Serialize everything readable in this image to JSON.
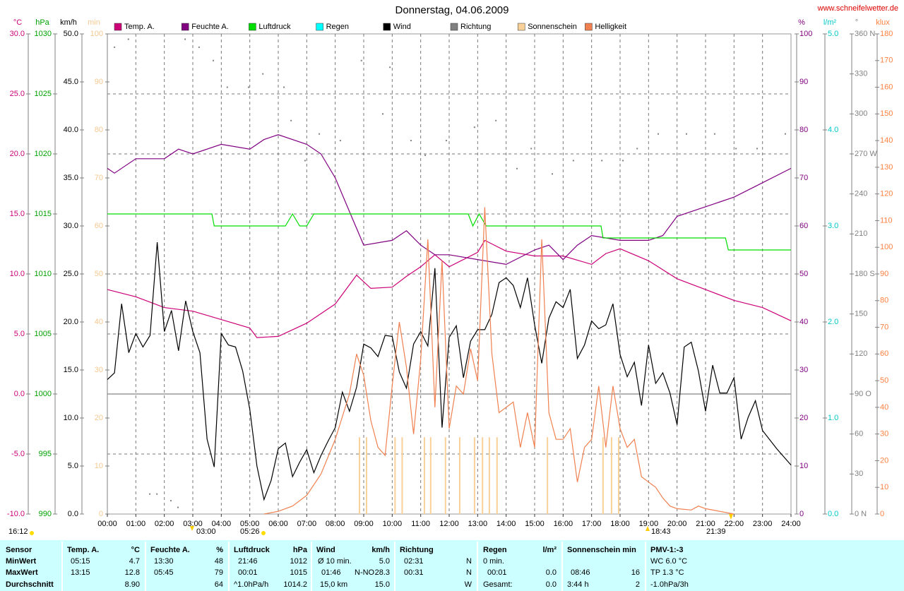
{
  "chart_data": {
    "type": "line",
    "title": "Donnerstag, 04.06.2009",
    "source": "www.schneifelwetter.de",
    "xlim": [
      0,
      24
    ],
    "xticks": [
      {
        "value": 0,
        "label": "00:00"
      },
      {
        "value": 1,
        "label": "01:00"
      },
      {
        "value": 2,
        "label": "02:00"
      },
      {
        "value": 3,
        "label": "03:00"
      },
      {
        "value": 4,
        "label": "04:00"
      },
      {
        "value": 5,
        "label": "05:00"
      },
      {
        "value": 6,
        "label": "06:00"
      },
      {
        "value": 7,
        "label": "07:00"
      },
      {
        "value": 8,
        "label": "08:00"
      },
      {
        "value": 9,
        "label": "09:00"
      },
      {
        "value": 10,
        "label": "10:00"
      },
      {
        "value": 11,
        "label": "11:00"
      },
      {
        "value": 12,
        "label": "12:00"
      },
      {
        "value": 13,
        "label": "13:00"
      },
      {
        "value": 14,
        "label": "14:00"
      },
      {
        "value": 15,
        "label": "15:00"
      },
      {
        "value": 16,
        "label": "16:00"
      },
      {
        "value": 17,
        "label": "17:00"
      },
      {
        "value": 18,
        "label": "18:00"
      },
      {
        "value": 19,
        "label": "19:00"
      },
      {
        "value": 20,
        "label": "20:00"
      },
      {
        "value": 21,
        "label": "21:00"
      },
      {
        "value": 22,
        "label": "22:00"
      },
      {
        "value": 23,
        "label": "23:00"
      },
      {
        "value": 24,
        "label": "24:00"
      }
    ],
    "grid": true,
    "annotations": [
      "16:12",
      "03:00",
      "05:26",
      "18:43",
      "21:39"
    ],
    "axes": [
      {
        "id": "temp",
        "label": "°C",
        "color": "#cc0077",
        "lim": [
          -10,
          30
        ],
        "ticks": [
          {
            "value": -10,
            "label": "-10.0"
          },
          {
            "value": -5,
            "label": "-5.0"
          },
          {
            "value": 0,
            "label": "0.0"
          },
          {
            "value": 5,
            "label": "5.0"
          },
          {
            "value": 10,
            "label": "10.0"
          },
          {
            "value": 15,
            "label": "15.0"
          },
          {
            "value": 20,
            "label": "20.0"
          },
          {
            "value": 25,
            "label": "25.0"
          },
          {
            "value": 30,
            "label": "30.0"
          }
        ]
      },
      {
        "id": "hpa",
        "label": "hPa",
        "color": "#00a000",
        "lim": [
          990,
          1030
        ],
        "ticks": [
          990,
          995,
          1000,
          1005,
          1010,
          1015,
          1020,
          1025,
          1030
        ]
      },
      {
        "id": "kmh",
        "label": "km/h",
        "color": "#000000",
        "lim": [
          0,
          50
        ],
        "ticks": [
          {
            "value": 0,
            "label": "0.0"
          },
          {
            "value": 5,
            "label": "5.0"
          },
          {
            "value": 10,
            "label": "10.0"
          },
          {
            "value": 15,
            "label": "15.0"
          },
          {
            "value": 20,
            "label": "20.0"
          },
          {
            "value": 25,
            "label": "25.0"
          },
          {
            "value": 30,
            "label": "30.0"
          },
          {
            "value": 35,
            "label": "35.0"
          },
          {
            "value": 40,
            "label": "40.0"
          },
          {
            "value": 45,
            "label": "45.0"
          },
          {
            "value": 50,
            "label": "50.0"
          }
        ]
      },
      {
        "id": "min",
        "label": "min",
        "color": "#f5c890",
        "lim": [
          0,
          100
        ],
        "ticks": [
          0,
          10,
          20,
          30,
          40,
          50,
          60,
          70,
          80,
          90,
          100
        ]
      },
      {
        "id": "pct",
        "label": "%",
        "color": "#800080",
        "lim": [
          0,
          100
        ],
        "ticks": [
          0,
          10,
          20,
          30,
          40,
          50,
          60,
          70,
          80,
          90,
          100
        ]
      },
      {
        "id": "rain",
        "label": "l/m²",
        "color": "#00c8c8",
        "lim": [
          0,
          5
        ],
        "ticks": [
          {
            "value": 0,
            "label": "0.0"
          },
          {
            "value": 1,
            "label": "1.0"
          },
          {
            "value": 2,
            "label": "2.0"
          },
          {
            "value": 3,
            "label": "3.0"
          },
          {
            "value": 4,
            "label": "4.0"
          },
          {
            "value": 5,
            "label": "5.0"
          }
        ]
      },
      {
        "id": "deg",
        "label": "°",
        "color": "#808080",
        "lim": [
          0,
          360
        ],
        "ticks": [
          {
            "value": 0,
            "label": "0 N"
          },
          30,
          60,
          {
            "value": 90,
            "label": "90 O"
          },
          120,
          150,
          {
            "value": 180,
            "label": "180 S"
          },
          210,
          240,
          {
            "value": 270,
            "label": "270 W"
          },
          300,
          330,
          {
            "value": 360,
            "label": "360 N"
          }
        ]
      },
      {
        "id": "klux",
        "label": "klux",
        "color": "#ff8040",
        "lim": [
          0,
          180
        ],
        "ticks": [
          0,
          10,
          20,
          30,
          40,
          50,
          60,
          70,
          80,
          90,
          100,
          110,
          120,
          130,
          140,
          150,
          160,
          170,
          180
        ]
      }
    ],
    "series": [
      {
        "name": "Temp. A.",
        "color": "#cc0077",
        "axis": "temp",
        "kind": "line",
        "x": [
          0,
          1,
          2,
          3,
          4,
          5,
          5.25,
          6,
          7,
          8,
          8.75,
          9.25,
          10,
          10.5,
          11,
          11.5,
          12,
          13,
          13.25,
          14,
          15,
          16,
          17,
          17.5,
          18,
          19,
          20,
          21,
          22,
          23,
          24
        ],
        "values": [
          8.7,
          8.1,
          7.2,
          6.9,
          6.2,
          5.5,
          4.7,
          4.8,
          5.9,
          7.5,
          9.9,
          8.8,
          8.9,
          9.8,
          10.6,
          11.6,
          10.6,
          11.8,
          12.8,
          11.9,
          11.5,
          11.5,
          10.8,
          11.7,
          12.1,
          11.1,
          9.6,
          8.7,
          7.8,
          7.2,
          6.1
        ]
      },
      {
        "name": "Feuchte A.",
        "color": "#800080",
        "axis": "pct",
        "kind": "line",
        "x": [
          0,
          0.25,
          1,
          2,
          2.5,
          3,
          4,
          5,
          5.5,
          6,
          7,
          7.5,
          8,
          8.5,
          9,
          10,
          10.5,
          11,
          11.5,
          12,
          13,
          14,
          15,
          15.5,
          16,
          16.5,
          17,
          18,
          19,
          19.5,
          20,
          21,
          22,
          23,
          24
        ],
        "values": [
          72,
          71,
          74,
          74,
          76,
          75,
          77,
          76,
          78,
          79,
          77,
          75,
          70,
          63,
          56,
          57,
          59,
          56,
          54,
          54,
          53,
          52,
          55,
          56,
          53,
          56,
          58,
          57,
          57,
          58,
          62,
          64,
          66,
          69,
          72
        ]
      },
      {
        "name": "Luftdruck",
        "color": "#00dd00",
        "axis": "hpa",
        "kind": "line",
        "x": [
          0,
          3.67,
          3.75,
          6.25,
          6.5,
          6.75,
          7,
          7.25,
          12.67,
          12.83,
          13.05,
          13.3,
          17.33,
          17.4,
          21.7,
          21.8,
          24
        ],
        "values": [
          1015,
          1015,
          1014,
          1014,
          1015,
          1014,
          1014,
          1015,
          1015,
          1014,
          1015,
          1014,
          1014,
          1013,
          1013,
          1012,
          1012
        ]
      },
      {
        "name": "Regen",
        "color": "#00ffff",
        "axis": "rain",
        "kind": "bar",
        "x": [],
        "values": []
      },
      {
        "name": "Wind",
        "color": "#000000",
        "axis": "kmh",
        "kind": "line",
        "x": [
          0,
          0.25,
          0.5,
          0.75,
          1,
          1.25,
          1.5,
          1.75,
          2,
          2.25,
          2.5,
          2.75,
          3,
          3.25,
          3.5,
          3.75,
          4,
          4.25,
          4.5,
          4.75,
          5,
          5.25,
          5.5,
          5.75,
          6,
          6.25,
          6.5,
          6.75,
          7,
          7.25,
          7.5,
          7.75,
          8,
          8.25,
          8.5,
          8.75,
          9,
          9.25,
          9.5,
          9.75,
          10,
          10.25,
          10.5,
          10.75,
          11,
          11.25,
          11.5,
          11.75,
          12,
          12.25,
          12.5,
          12.75,
          13,
          13.25,
          13.5,
          13.75,
          14,
          14.25,
          14.5,
          14.75,
          15,
          15.25,
          15.5,
          15.75,
          16,
          16.25,
          16.5,
          16.75,
          17,
          17.25,
          17.5,
          17.75,
          18,
          18.25,
          18.5,
          18.75,
          19,
          19.25,
          19.5,
          19.75,
          20,
          20.25,
          20.5,
          20.75,
          21,
          21.25,
          21.5,
          21.75,
          22,
          22.25,
          22.5,
          22.75,
          23,
          23.5,
          24
        ],
        "values": [
          14.0,
          14.7,
          21.9,
          16.8,
          18.8,
          17.4,
          18.6,
          28.3,
          19.0,
          21.2,
          17.0,
          22.2,
          19.0,
          16.8,
          7.8,
          4.9,
          18.8,
          17.6,
          17.4,
          14.9,
          10.9,
          5.0,
          1.5,
          3.5,
          6.8,
          7.4,
          3.9,
          5.4,
          6.7,
          4.3,
          6.1,
          7.6,
          9.0,
          12.7,
          10.7,
          13.2,
          17.7,
          17.3,
          16.4,
          18.6,
          18.5,
          14.8,
          13.1,
          17.7,
          19.0,
          17.5,
          25.6,
          9.0,
          18.4,
          19.6,
          14.2,
          18.0,
          19.2,
          19.2,
          20.8,
          24.1,
          24.6,
          23.8,
          21.5,
          24.6,
          19.7,
          15.7,
          20.4,
          22.1,
          21.5,
          23.4,
          16.2,
          17.6,
          20.1,
          19.3,
          19.7,
          21.9,
          16.6,
          14.3,
          15.8,
          11.3,
          17.6,
          13.6,
          14.7,
          12.6,
          9.3,
          17.4,
          17.9,
          14.9,
          10.7,
          15.5,
          12.6,
          12.6,
          14.2,
          7.8,
          10.1,
          11.8,
          8.7,
          6.8,
          5.1
        ]
      },
      {
        "name": "Richtung",
        "color": "#808080",
        "axis": "deg",
        "kind": "dots",
        "x": [
          0.25,
          0.74,
          1.49,
          1.74,
          2.23,
          2.48,
          2.73,
          3.22,
          3.72,
          4.21,
          4.96,
          5.46,
          6.2,
          6.45,
          6.94,
          7.44,
          8.18,
          8.92,
          9.67,
          9.92,
          10.66,
          11.16,
          11.9,
          12.89,
          13.64,
          14.38,
          14.88,
          15.62,
          16.36,
          17.36,
          18.1,
          18.6,
          19.34,
          20.33,
          21.32,
          22.07,
          22.81,
          23.8
        ],
        "values": [
          350,
          356,
          15,
          15,
          10,
          5,
          356,
          350,
          340,
          320,
          320,
          330,
          320,
          295,
          265,
          285,
          280,
          340,
          300,
          335,
          280,
          269,
          280,
          290,
          295,
          259,
          274,
          255,
          265,
          265,
          265,
          274,
          285,
          285,
          285,
          274,
          274,
          285
        ]
      },
      {
        "name": "Sonnenschein",
        "color": "#f8d098",
        "axis": "min",
        "kind": "bar",
        "x": [
          8.85,
          9.1,
          10.1,
          10.35,
          11.13,
          11.35,
          11.87,
          12.37,
          12.89,
          13.17,
          13.41,
          13.68,
          15.45,
          17.4,
          17.7,
          17.95
        ],
        "values": [
          16,
          16,
          16,
          16,
          16,
          16,
          16,
          16,
          16,
          16,
          16,
          16,
          16,
          16,
          16,
          16
        ]
      },
      {
        "name": "Helligkeit",
        "color": "#f08050",
        "axis": "klux",
        "kind": "line",
        "x": [
          5.5,
          6,
          6.5,
          7,
          7.5,
          8,
          8.5,
          8.75,
          9,
          9.25,
          9.5,
          9.75,
          10,
          10.25,
          10.5,
          10.75,
          11,
          11.25,
          11.5,
          11.75,
          12,
          12.25,
          12.5,
          12.75,
          13,
          13.25,
          13.5,
          13.75,
          14,
          14.25,
          14.5,
          14.75,
          15,
          15.25,
          15.5,
          15.75,
          16,
          16.25,
          16.5,
          16.75,
          17,
          17.25,
          17.5,
          17.75,
          18,
          18.25,
          18.5,
          18.75,
          19,
          19.25,
          19.5,
          19.75,
          20,
          20.5,
          20.75,
          21,
          21.5,
          22
        ],
        "values": [
          0,
          1,
          3,
          7,
          15,
          28,
          45,
          60,
          52,
          35,
          25,
          22,
          48,
          72,
          55,
          30,
          58,
          103,
          40,
          95,
          32,
          48,
          45,
          62,
          50,
          115,
          60,
          38,
          40,
          42,
          25,
          38,
          25,
          103,
          38,
          28,
          28,
          32,
          12,
          25,
          28,
          48,
          25,
          48,
          32,
          25,
          28,
          14,
          12,
          10,
          6,
          3,
          2,
          1.5,
          3,
          2,
          1,
          0
        ]
      }
    ]
  },
  "stats": {
    "sensor": {
      "label": "Sensor",
      "rows": [
        "MinWert",
        "MaxWert",
        "Durchschnitt"
      ]
    },
    "temp": {
      "label": "Temp. A.",
      "unit": "°C",
      "min_time": "05:15",
      "min": "4.7",
      "max_time": "13:15",
      "max": "12.8",
      "avg": "8.90"
    },
    "humidity": {
      "label": "Feuchte A.",
      "unit": "%",
      "min_time": "13:30",
      "min": "48",
      "max_time": "05:45",
      "max": "79",
      "avg": "64"
    },
    "pressure": {
      "label": "Luftdruck",
      "unit": "hPa",
      "min_time": "21:46",
      "min": "1012",
      "max_time": "00:01",
      "max": "1015",
      "trend": "^1.0hPa/h",
      "avg": "1014.2"
    },
    "wind": {
      "label": "Wind",
      "unit": "km/h",
      "avg10_label": "Ø 10 min.",
      "avg10": "5.0",
      "max_time": "01:46",
      "max_dir": "N-NO",
      "max": "28.3",
      "distance": "15,0 km",
      "avg": "15.0"
    },
    "direction": {
      "label": "Richtung",
      "min_time": "02:31",
      "min": "N",
      "max_time": "00:31",
      "max": "N",
      "avg": "W"
    },
    "rain": {
      "label": "Regen",
      "unit": "l/m²",
      "duration": "0 min.",
      "max_time": "00:01",
      "max": "0.0",
      "total_label": "Gesamt:",
      "total": "0.0"
    },
    "sun": {
      "label": "Sonnenschein min",
      "max_time": "08:46",
      "max": "16",
      "total_time": "3:44 h",
      "total": "2"
    },
    "pmv": {
      "label": "PMV-1:-3",
      "wc": "WC 6.0 °C",
      "tp": "TP 1.3 °C",
      "trend": "-1.0hPa/3h"
    }
  }
}
